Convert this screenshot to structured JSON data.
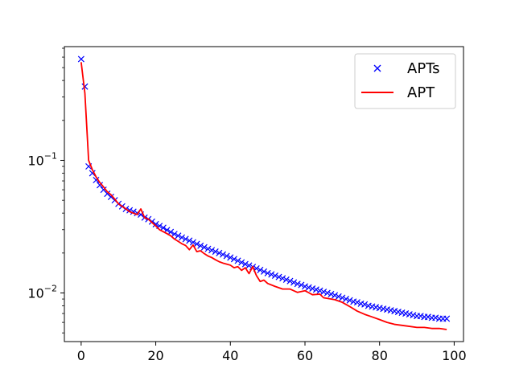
{
  "chart_data": {
    "type": "line",
    "yscale": "log",
    "title": "",
    "xlabel": "",
    "ylabel": "",
    "xlim": [
      -4.5,
      102.5
    ],
    "ylim": [
      0.0043,
      0.72
    ],
    "grid": false,
    "legend_position": "top-right",
    "x_ticks": [
      {
        "value": 0,
        "label": "0"
      },
      {
        "value": 20,
        "label": "20"
      },
      {
        "value": 40,
        "label": "40"
      },
      {
        "value": 60,
        "label": "60"
      },
      {
        "value": 80,
        "label": "80"
      },
      {
        "value": 100,
        "label": "100"
      }
    ],
    "y_ticks": [
      {
        "value": 0.1,
        "base": "10",
        "exponent": "−1"
      },
      {
        "value": 0.01,
        "base": "10",
        "exponent": "−2"
      }
    ],
    "y_minor_ticks": [
      0.005,
      0.006,
      0.007,
      0.008,
      0.009,
      0.02,
      0.03,
      0.04,
      0.05,
      0.06,
      0.07,
      0.08,
      0.09,
      0.2,
      0.3,
      0.4,
      0.5,
      0.6,
      0.7
    ],
    "series": [
      {
        "name": "APTs",
        "style": "markers",
        "marker": "x",
        "color": "#0000ff",
        "x": [
          0,
          1,
          2,
          3,
          4,
          5,
          6,
          7,
          8,
          9,
          10,
          11,
          12,
          13,
          14,
          15,
          16,
          17,
          18,
          19,
          20,
          21,
          22,
          23,
          24,
          25,
          26,
          27,
          28,
          29,
          30,
          31,
          32,
          33,
          34,
          35,
          36,
          37,
          38,
          39,
          40,
          41,
          42,
          43,
          44,
          45,
          46,
          47,
          48,
          49,
          50,
          51,
          52,
          53,
          54,
          55,
          56,
          57,
          58,
          59,
          60,
          61,
          62,
          63,
          64,
          65,
          66,
          67,
          68,
          69,
          70,
          71,
          72,
          73,
          74,
          75,
          76,
          77,
          78,
          79,
          80,
          81,
          82,
          83,
          84,
          85,
          86,
          87,
          88,
          89,
          90,
          91,
          92,
          93,
          94,
          95,
          96,
          97,
          98
        ],
        "y": [
          0.58,
          0.36,
          0.09,
          0.08,
          0.071,
          0.065,
          0.06,
          0.056,
          0.053,
          0.05,
          0.047,
          0.045,
          0.043,
          0.042,
          0.041,
          0.04,
          0.039,
          0.037,
          0.036,
          0.0345,
          0.033,
          0.032,
          0.031,
          0.0298,
          0.0288,
          0.0278,
          0.027,
          0.0262,
          0.0255,
          0.0248,
          0.0241,
          0.0234,
          0.0227,
          0.0221,
          0.0215,
          0.021,
          0.0205,
          0.02,
          0.0195,
          0.019,
          0.0185,
          0.018,
          0.0175,
          0.017,
          0.0165,
          0.0161,
          0.0157,
          0.0153,
          0.0149,
          0.0145,
          0.0141,
          0.0138,
          0.0135,
          0.0132,
          0.0129,
          0.0126,
          0.0123,
          0.012,
          0.0117,
          0.0115,
          0.0112,
          0.011,
          0.0108,
          0.0106,
          0.0104,
          0.0102,
          0.01,
          0.0098,
          0.0096,
          0.0094,
          0.0092,
          0.009,
          0.0088,
          0.0086,
          0.0085,
          0.0083,
          0.0082,
          0.008,
          0.0079,
          0.0078,
          0.0077,
          0.0076,
          0.0075,
          0.0074,
          0.0073,
          0.0072,
          0.0071,
          0.007,
          0.0069,
          0.0068,
          0.0067,
          0.0067,
          0.0066,
          0.0066,
          0.0065,
          0.0065,
          0.0064,
          0.0064,
          0.0064
        ]
      },
      {
        "name": "APT",
        "style": "line",
        "color": "#ff0000",
        "x": [
          0,
          1,
          2,
          3,
          4,
          5,
          6,
          7,
          8,
          9,
          10,
          11,
          12,
          13,
          14,
          15,
          16,
          17,
          18,
          19,
          20,
          21,
          22,
          23,
          24,
          25,
          26,
          27,
          28,
          29,
          30,
          31,
          32,
          33,
          34,
          35,
          36,
          37,
          38,
          39,
          40,
          41,
          42,
          43,
          44,
          45,
          46,
          47,
          48,
          49,
          50,
          52,
          54,
          56,
          58,
          60,
          62,
          64,
          65,
          66,
          68,
          70,
          72,
          74,
          76,
          78,
          80,
          82,
          84,
          86,
          88,
          90,
          92,
          94,
          96,
          98
        ],
        "y": [
          0.55,
          0.32,
          0.1,
          0.085,
          0.075,
          0.068,
          0.063,
          0.058,
          0.055,
          0.051,
          0.047,
          0.045,
          0.043,
          0.041,
          0.04,
          0.039,
          0.043,
          0.037,
          0.036,
          0.034,
          0.032,
          0.03,
          0.029,
          0.028,
          0.027,
          0.0255,
          0.0245,
          0.0235,
          0.0228,
          0.0212,
          0.023,
          0.0205,
          0.0208,
          0.0198,
          0.019,
          0.0185,
          0.0178,
          0.0172,
          0.0168,
          0.0165,
          0.0162,
          0.0155,
          0.0158,
          0.0148,
          0.0155,
          0.014,
          0.0158,
          0.0135,
          0.0122,
          0.0125,
          0.0118,
          0.0112,
          0.0107,
          0.0107,
          0.0101,
          0.0104,
          0.0097,
          0.0098,
          0.0092,
          0.0091,
          0.0089,
          0.0085,
          0.0079,
          0.0073,
          0.0069,
          0.0066,
          0.0063,
          0.006,
          0.0058,
          0.0057,
          0.0056,
          0.0055,
          0.0055,
          0.0054,
          0.0054,
          0.0053
        ]
      }
    ]
  }
}
